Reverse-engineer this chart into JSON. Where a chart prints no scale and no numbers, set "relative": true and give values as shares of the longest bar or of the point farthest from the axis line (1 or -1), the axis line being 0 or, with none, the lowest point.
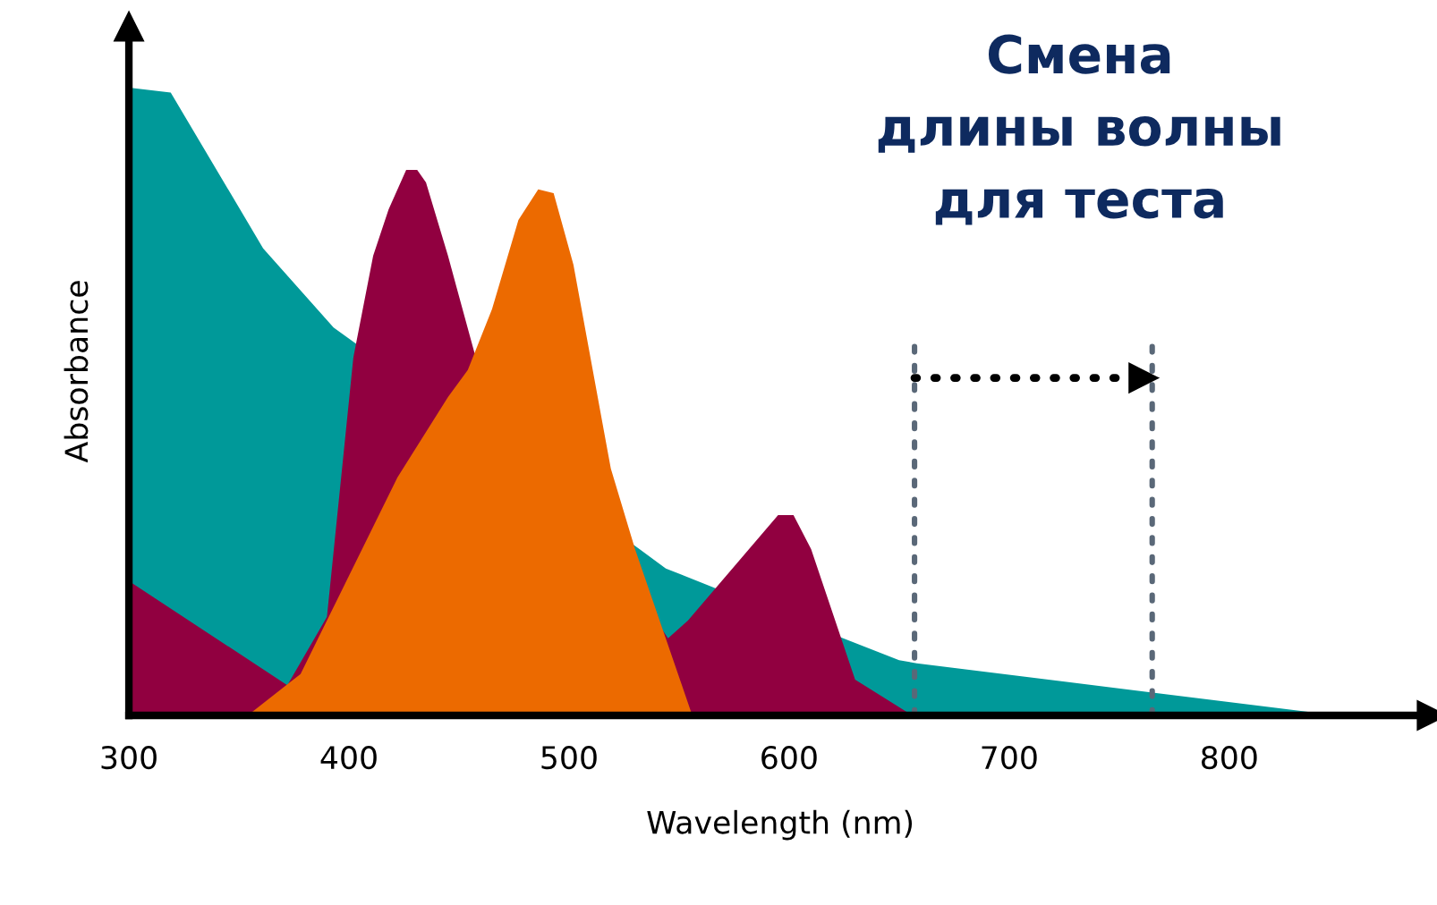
{
  "chart_data": {
    "type": "area",
    "relative": true,
    "title": "Смена\nдлины волны\nдля теста",
    "xlabel": "Wavelength (nm)",
    "ylabel": "Absorbance",
    "xlim": [
      300,
      892
    ],
    "xticks": [
      300,
      400,
      500,
      600,
      700,
      800
    ],
    "series": [
      {
        "color": "#009999",
        "x": [
          300,
          319,
          361,
          393,
          404,
          532,
          544,
          567,
          650,
          658,
          849
        ],
        "values": [
          1.0,
          0.992,
          0.744,
          0.618,
          0.59,
          0.265,
          0.234,
          0.202,
          0.088,
          0.083,
          0
        ]
      },
      {
        "color": "#910040",
        "x": [
          300,
          372,
          390,
          402,
          411,
          418,
          426,
          431,
          435,
          445,
          457,
          545,
          554,
          595,
          602,
          610,
          630,
          656
        ],
        "values": [
          0.214,
          0.048,
          0.157,
          0.57,
          0.732,
          0.806,
          0.869,
          0.869,
          0.849,
          0.732,
          0.578,
          0.123,
          0.151,
          0.319,
          0.319,
          0.265,
          0.057,
          0
        ]
      },
      {
        "color": "#ec6a00",
        "x": [
          354,
          378,
          422,
          445,
          454,
          465,
          477,
          486,
          493,
          502,
          519,
          530,
          556
        ],
        "values": [
          0,
          0.066,
          0.379,
          0.507,
          0.55,
          0.647,
          0.789,
          0.838,
          0.832,
          0.718,
          0.393,
          0.265,
          0
        ]
      }
    ],
    "ref_lines": [
      {
        "axis": "x",
        "value": 657,
        "color": "#5a6878",
        "line_style": "dotted"
      },
      {
        "axis": "x",
        "value": 765,
        "color": "#5a6878",
        "line_style": "dotted"
      }
    ],
    "grid": false,
    "legend": false
  }
}
